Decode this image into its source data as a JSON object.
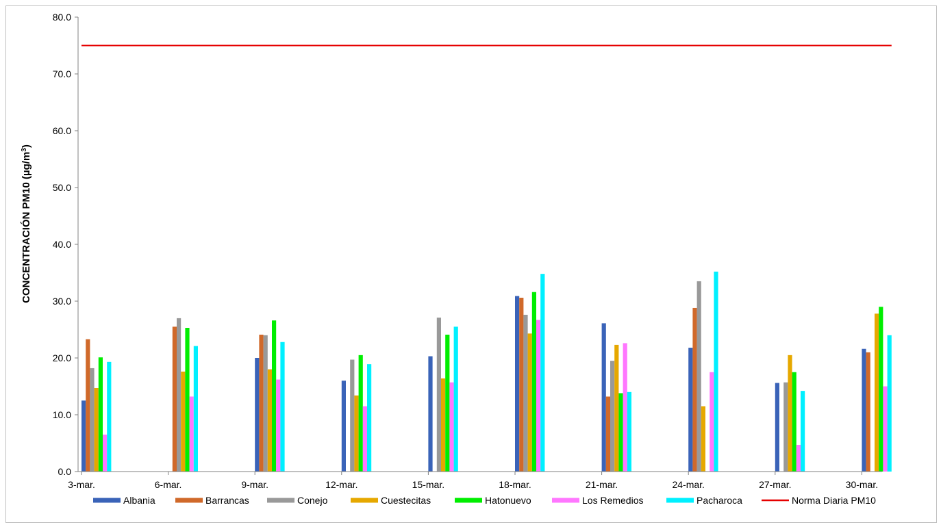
{
  "chart_data": {
    "type": "bar",
    "title": "",
    "xlabel": "",
    "ylabel": "CONCENTRACIÓN PM10 (µg/m³)",
    "ylabel_main": "CONCENTRACIÓN PM10 (µg/m",
    "ylabel_sup": "3",
    "ylabel_close": ")",
    "ylim": [
      0,
      80
    ],
    "yticks": [
      "0.0",
      "10.0",
      "20.0",
      "30.0",
      "40.0",
      "50.0",
      "60.0",
      "70.0",
      "80.0"
    ],
    "grid": false,
    "legend_position": "bottom",
    "categories": [
      "3-mar.",
      "6-mar.",
      "9-mar.",
      "12-mar.",
      "15-mar.",
      "18-mar.",
      "21-mar.",
      "24-mar.",
      "27-mar.",
      "30-mar."
    ],
    "series": [
      {
        "name": "Albania",
        "color": "#3a63b8",
        "values": [
          12.5,
          null,
          20.0,
          16.0,
          20.3,
          30.9,
          26.1,
          21.8,
          15.6,
          21.6
        ]
      },
      {
        "name": "Barrancas",
        "color": "#d0692a",
        "values": [
          23.3,
          25.5,
          24.1,
          null,
          null,
          30.6,
          13.2,
          28.8,
          null,
          21.0
        ]
      },
      {
        "name": "Conejo",
        "color": "#999999",
        "values": [
          18.2,
          27.0,
          24.0,
          19.7,
          27.1,
          27.6,
          19.5,
          33.5,
          15.7,
          null
        ]
      },
      {
        "name": "Cuestecitas",
        "color": "#e6a800",
        "values": [
          14.7,
          17.6,
          18.0,
          13.4,
          16.4,
          24.3,
          22.3,
          11.5,
          20.5,
          27.8
        ]
      },
      {
        "name": "Hatonuevo",
        "color": "#00ee00",
        "values": [
          20.1,
          25.3,
          26.6,
          20.5,
          24.1,
          31.6,
          13.8,
          null,
          17.5,
          29.0
        ]
      },
      {
        "name": "Los Remedios",
        "color": "#ff77ff",
        "values": [
          6.5,
          13.2,
          16.2,
          11.5,
          15.7,
          26.7,
          22.6,
          17.5,
          4.7,
          15.0
        ]
      },
      {
        "name": "Pacharoca",
        "color": "#00f0ff",
        "values": [
          19.3,
          22.1,
          22.8,
          18.9,
          25.5,
          34.8,
          14.0,
          35.2,
          14.2,
          24.0
        ]
      }
    ],
    "reference_line": {
      "name": "Norma Diaria PM10",
      "color": "#e60000",
      "value": 75
    }
  }
}
